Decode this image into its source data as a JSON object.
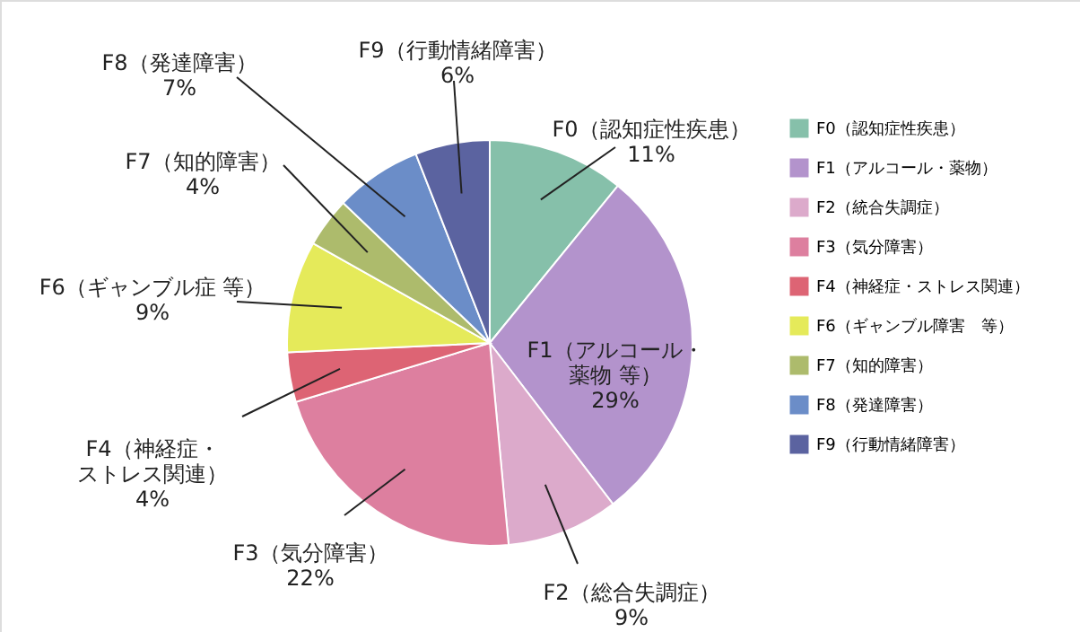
{
  "chart_data": {
    "type": "pie",
    "categories": [
      "F0（認知症性疾患）",
      "F1（アルコール・薬物）",
      "F2（統合失調症）",
      "F3（気分障害）",
      "F4（神経症・ストレス関連）",
      "F6（ギャンブル障害　等）",
      "F7（知的障害）",
      "F8（発達障害）",
      "F9（行動情緒障害）"
    ],
    "values": [
      11,
      29,
      9,
      22,
      4,
      9,
      4,
      7,
      6
    ],
    "colors": [
      "#86c0aa",
      "#b393cc",
      "#dcaacb",
      "#dd7f9f",
      "#dd6474",
      "#e5ea5a",
      "#adbb6c",
      "#6b8dc8",
      "#5b63a0"
    ],
    "value_labels": [
      "F0（認知症性疾患）\n11%",
      "F1（アルコール・薬物 等）\n29%",
      "F2（総合失調症）\n9%",
      "F3（気分障害）\n22%",
      "F4（神経症・ストレス関連）\n4%",
      "F6（ギャンブル症 等）\n9%",
      "F7（知的障害）\n4%",
      "F8（発達障害）\n7%",
      "F9（行動情緒障害）\n6%"
    ],
    "legend": "right"
  }
}
